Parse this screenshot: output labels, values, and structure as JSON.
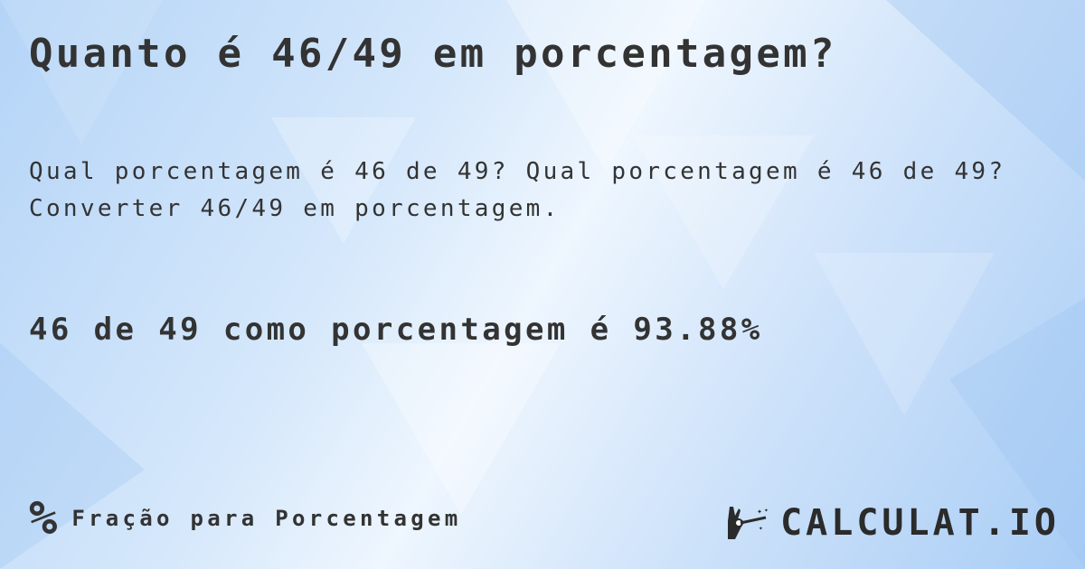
{
  "title": "Quanto é 46/49 em porcentagem?",
  "question_line1": "Qual porcentagem é 46 de 49? Qual porcentagem é 46 de 49?",
  "question_line2": "Converter 46/49 em porcentagem.",
  "answer": "46 de 49 como porcentagem é 93.88%",
  "footer": {
    "icon": "percent-icon",
    "icon_glyph": "%",
    "label": "Fração para Porcentagem"
  },
  "logo": {
    "text": "CALCULAT.IO",
    "icon": "magic-hand-icon"
  },
  "colors": {
    "text": "#333333",
    "background": "#cfe3fa"
  }
}
